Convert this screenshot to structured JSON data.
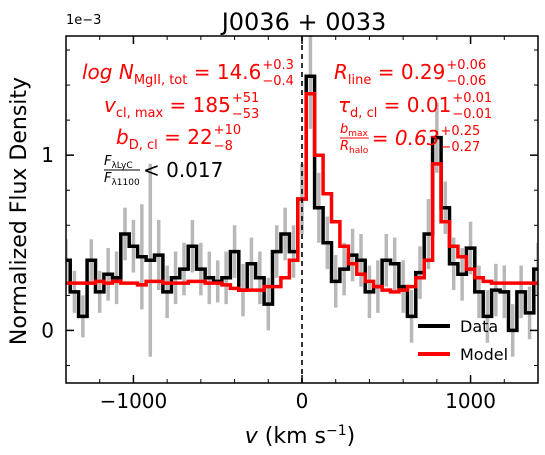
{
  "chart_data": {
    "type": "line",
    "title": "J0036 + 0033",
    "xlabel": "v (km s⁻¹)",
    "ylabel": "Normalized Flux Density",
    "y_multiplier": "1e−3",
    "xlim": [
      -1400,
      1400
    ],
    "ylim": [
      -0.3,
      1.68
    ],
    "x_ticks": [
      -1000,
      0,
      1000
    ],
    "x_tick_labels": [
      "−1000",
      "0",
      "1000"
    ],
    "y_ticks": [
      0,
      1
    ],
    "y_tick_labels": [
      "0",
      "1"
    ],
    "vline_x": 0,
    "legend": {
      "position": "lower-right",
      "entries": [
        {
          "label": "Data",
          "color": "#000000"
        },
        {
          "label": "Model",
          "color": "#ff0000"
        }
      ]
    },
    "annotations": {
      "logN": {
        "label": "log N",
        "sub": "MgII, tot",
        "value": "= 14.6",
        "sup": "+0.3",
        "sub2": "−0.4"
      },
      "vcl": {
        "label": "v",
        "sub": "cl, max",
        "value": "= 185",
        "sup": "+51",
        "sub2": "−53"
      },
      "bD": {
        "label": "b",
        "sub": "D, cl",
        "value": "= 22",
        "sup": "+10",
        "sub2": "−8"
      },
      "Rline": {
        "label": "R",
        "sub": "line",
        "value": "= 0.29",
        "sup": "+0.06",
        "sub2": "−0.06"
      },
      "tau": {
        "label": "τ",
        "sub": "d, cl",
        "value": "= 0.01",
        "sup": "+0.01",
        "sub2": "−0.01"
      },
      "bratio": {
        "num": "b",
        "num_sub": "max",
        "den": "R",
        "den_sub": "halo",
        "value": "= 0.63",
        "sup": "+0.25",
        "sub2": "−0.27"
      },
      "lyc": {
        "num": "F",
        "num_sub": "λLyC",
        "den": "F",
        "den_sub": "λ1100",
        "value": "< 0.017"
      }
    },
    "series": [
      {
        "name": "Data",
        "color": "#000000",
        "x": [
          -1400,
          -1350,
          -1300,
          -1250,
          -1200,
          -1150,
          -1100,
          -1050,
          -1000,
          -950,
          -900,
          -850,
          -800,
          -750,
          -700,
          -650,
          -600,
          -550,
          -500,
          -450,
          -400,
          -350,
          -300,
          -250,
          -200,
          -150,
          -100,
          -50,
          0,
          50,
          100,
          150,
          200,
          250,
          300,
          350,
          400,
          450,
          500,
          550,
          600,
          650,
          700,
          750,
          800,
          850,
          900,
          950,
          1000,
          1050,
          1100,
          1150,
          1200,
          1250,
          1300,
          1350,
          1400
        ],
        "y": [
          0.4,
          0.22,
          0.08,
          0.4,
          0.22,
          0.32,
          0.3,
          0.55,
          0.48,
          0.42,
          0.4,
          0.43,
          0.22,
          0.3,
          0.35,
          0.48,
          0.35,
          0.3,
          0.28,
          0.3,
          0.45,
          0.23,
          0.38,
          0.3,
          0.15,
          0.45,
          0.55,
          0.45,
          0.75,
          1.45,
          0.7,
          0.5,
          0.28,
          0.35,
          0.43,
          0.4,
          0.22,
          0.25,
          0.4,
          0.38,
          0.25,
          0.08,
          0.33,
          0.55,
          1.1,
          0.7,
          0.38,
          0.32,
          0.47,
          0.22,
          0.08,
          0.23,
          0.22,
          0.0,
          0.22,
          0.1,
          0.35
        ],
        "err": [
          0.12,
          0.12,
          0.12,
          0.12,
          0.12,
          0.15,
          0.15,
          0.15,
          0.15,
          0.3,
          0.55,
          0.2,
          0.15,
          0.15,
          0.15,
          0.15,
          0.15,
          0.15,
          0.12,
          0.15,
          0.15,
          0.15,
          0.15,
          0.15,
          0.15,
          0.15,
          0.15,
          0.15,
          0.2,
          0.3,
          0.2,
          0.15,
          0.15,
          0.15,
          0.15,
          0.15,
          0.15,
          0.15,
          0.15,
          0.15,
          0.15,
          0.15,
          0.15,
          0.2,
          0.2,
          0.15,
          0.15,
          0.15,
          0.15,
          0.15,
          0.15,
          0.15,
          0.15,
          0.15,
          0.15,
          0.15,
          0.15
        ]
      },
      {
        "name": "Model",
        "color": "#ff0000",
        "x": [
          -1400,
          -1350,
          -1300,
          -1250,
          -1200,
          -1150,
          -1100,
          -1050,
          -1000,
          -950,
          -900,
          -850,
          -800,
          -750,
          -700,
          -650,
          -600,
          -550,
          -500,
          -450,
          -400,
          -350,
          -300,
          -250,
          -200,
          -150,
          -100,
          -50,
          0,
          50,
          100,
          150,
          200,
          250,
          300,
          350,
          400,
          450,
          500,
          550,
          600,
          650,
          700,
          750,
          800,
          850,
          900,
          950,
          1000,
          1050,
          1100,
          1150,
          1200,
          1250,
          1300,
          1350,
          1400
        ],
        "y": [
          0.27,
          0.27,
          0.27,
          0.27,
          0.28,
          0.27,
          0.28,
          0.27,
          0.27,
          0.26,
          0.28,
          0.28,
          0.27,
          0.27,
          0.27,
          0.28,
          0.28,
          0.27,
          0.27,
          0.26,
          0.24,
          0.23,
          0.23,
          0.23,
          0.25,
          0.25,
          0.3,
          0.4,
          0.75,
          1.35,
          1.0,
          0.78,
          0.62,
          0.48,
          0.38,
          0.32,
          0.28,
          0.25,
          0.23,
          0.22,
          0.23,
          0.25,
          0.3,
          0.4,
          0.95,
          0.62,
          0.48,
          0.42,
          0.35,
          0.3,
          0.28,
          0.27,
          0.27,
          0.27,
          0.27,
          0.27,
          0.27
        ]
      }
    ]
  }
}
